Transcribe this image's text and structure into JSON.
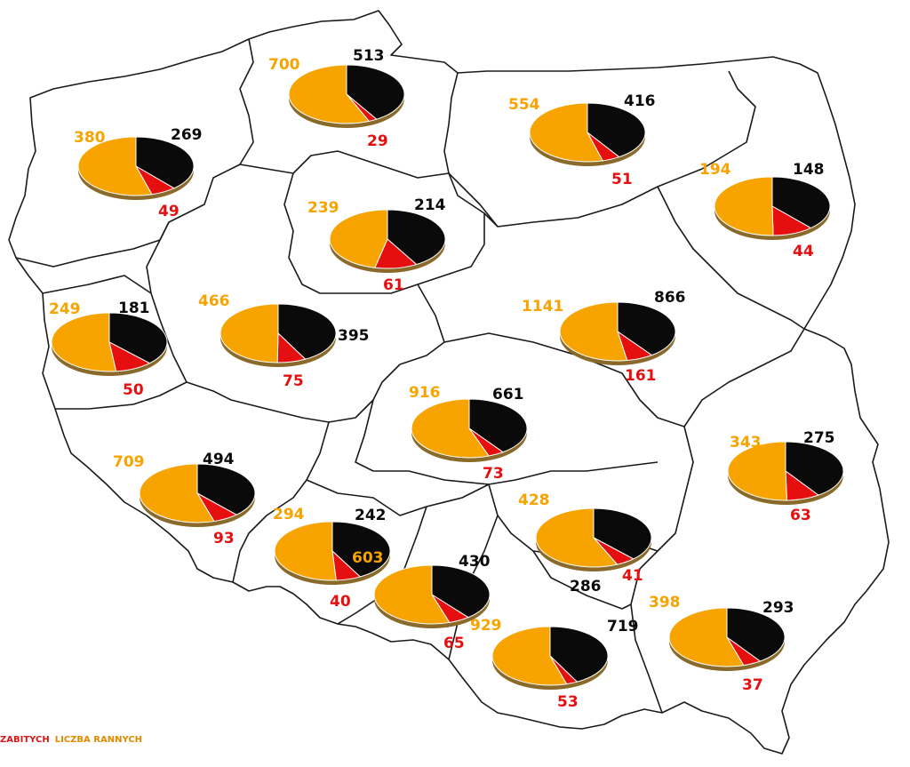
{
  "colors": {
    "deaths": "#0a0a0a",
    "injured": "#f7a300",
    "accidents": "#e50f0f",
    "border": "#1a1a1a",
    "legend_red": "#d81818",
    "legend_orange": "#e08a00"
  },
  "legend": {
    "item_deaths": "ZABITYCH",
    "item_injured": "LICZBA RANNYCH"
  },
  "voivodeships": [
    {
      "id": "zachodniopomorskie",
      "injured": "380",
      "deaths": "269",
      "third": "49"
    },
    {
      "id": "pomorskie",
      "injured": "700",
      "deaths": "513",
      "third": "29"
    },
    {
      "id": "warminsko-mazurskie",
      "injured": "554",
      "deaths": "416",
      "third": "51"
    },
    {
      "id": "podlaskie",
      "injured": "194",
      "deaths": "148",
      "third": "44"
    },
    {
      "id": "kujawsko-pomorskie",
      "injured": "239",
      "deaths": "214",
      "third": "61"
    },
    {
      "id": "lubuskie",
      "injured": "249",
      "deaths": "181",
      "third": "50"
    },
    {
      "id": "wielkopolskie",
      "injured": "466",
      "deaths": "395",
      "third": "75"
    },
    {
      "id": "mazowieckie",
      "injured": "1141",
      "deaths": "866",
      "third": "161"
    },
    {
      "id": "lodzkie",
      "injured": "916",
      "deaths": "661",
      "third": "73"
    },
    {
      "id": "lubelskie",
      "injured": "343",
      "deaths": "275",
      "third": "63"
    },
    {
      "id": "dolnoslaskie",
      "injured": "709",
      "deaths": "494",
      "third": "93"
    },
    {
      "id": "opolskie",
      "injured": "294",
      "deaths": "242",
      "third": "40"
    },
    {
      "id": "swietokrzyskie",
      "injured": "428",
      "deaths": "286",
      "third": "41"
    },
    {
      "id": "slaskie",
      "injured": "603",
      "deaths": "430",
      "third": "65"
    },
    {
      "id": "malopolskie",
      "injured": "929",
      "deaths": "719",
      "third": "53"
    },
    {
      "id": "podkarpackie",
      "injured": "398",
      "deaths": "293",
      "third": "37"
    }
  ]
}
